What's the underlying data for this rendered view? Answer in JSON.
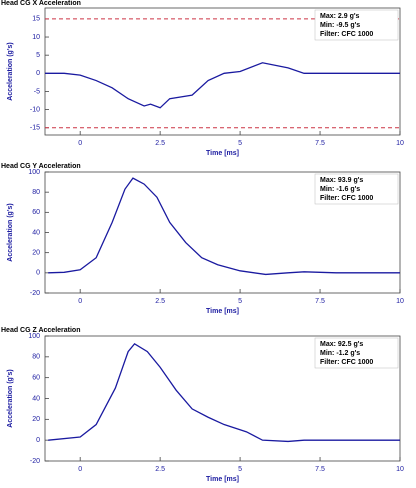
{
  "chart_data": [
    {
      "type": "line",
      "title": "Head CG X Acceleration",
      "xlabel": "Time [ms]",
      "ylabel": "Acceleration (g's)",
      "annotations": [
        "Max:   2.9 g's",
        "Min:  -9.5 g's",
        "Filter: CFC 1000"
      ],
      "xlim": [
        -1.1,
        10
      ],
      "xticks": [
        0,
        2.5,
        5,
        7.5,
        10
      ],
      "ylim": [
        -17,
        18
      ],
      "yticks": [
        -15,
        -10,
        -5,
        0,
        5,
        10,
        15
      ],
      "limits": [
        15,
        -15
      ],
      "limit_color": "#cc3344",
      "x": [
        -1.1,
        -0.5,
        0,
        0.5,
        1,
        1.5,
        2,
        2.2,
        2.5,
        2.8,
        3.5,
        4,
        4.5,
        5,
        5.7,
        6.5,
        7,
        10
      ],
      "series": [
        {
          "color": "#1a1aa0",
          "values": [
            0,
            0,
            -0.5,
            -2,
            -4,
            -7,
            -9,
            -8.5,
            -9.5,
            -7,
            -6,
            -2,
            0,
            0.5,
            2.9,
            1.5,
            0,
            0
          ]
        }
      ]
    },
    {
      "type": "line",
      "title": "Head CG Y Acceleration",
      "xlabel": "Time [ms]",
      "ylabel": "Acceleration (g's)",
      "annotations": [
        "Max:  93.9 g's",
        "Min:  -1.6 g's",
        "Filter: CFC 1000"
      ],
      "xlim": [
        -1.1,
        10
      ],
      "xticks": [
        0,
        2.5,
        5,
        7.5,
        10
      ],
      "ylim": [
        -20,
        100
      ],
      "yticks": [
        -20,
        0,
        20,
        40,
        60,
        80,
        100
      ],
      "x": [
        -1,
        -0.5,
        0,
        0.5,
        1,
        1.4,
        1.65,
        2,
        2.4,
        2.8,
        3.3,
        3.8,
        4.3,
        5,
        5.8,
        6.5,
        7,
        8,
        10
      ],
      "series": [
        {
          "color": "#1a1aa0",
          "values": [
            0,
            0.5,
            3,
            15,
            50,
            83,
            93.9,
            88,
            75,
            50,
            30,
            15,
            8,
            2,
            -1.6,
            0,
            1,
            0,
            0
          ]
        }
      ]
    },
    {
      "type": "line",
      "title": "Head CG Z Acceleration",
      "xlabel": "Time [ms]",
      "ylabel": "Acceleration (g's)",
      "annotations": [
        "Max:  92.5 g's",
        "Min:  -1.2 g's",
        "Filter: CFC 1000"
      ],
      "xlim": [
        -1.1,
        10
      ],
      "xticks": [
        0,
        2.5,
        5,
        7.5,
        10
      ],
      "ylim": [
        -20,
        100
      ],
      "yticks": [
        -20,
        0,
        20,
        40,
        60,
        80,
        100
      ],
      "x": [
        -1,
        0,
        0.5,
        1.1,
        1.5,
        1.7,
        2.1,
        2.5,
        3,
        3.5,
        4,
        4.5,
        5,
        5.2,
        5.7,
        6.5,
        7,
        10
      ],
      "series": [
        {
          "color": "#1a1aa0",
          "values": [
            0,
            3,
            15,
            50,
            85,
            92.5,
            85,
            70,
            48,
            30,
            22,
            15,
            10,
            8,
            0,
            -1.2,
            0,
            0
          ]
        }
      ]
    }
  ]
}
